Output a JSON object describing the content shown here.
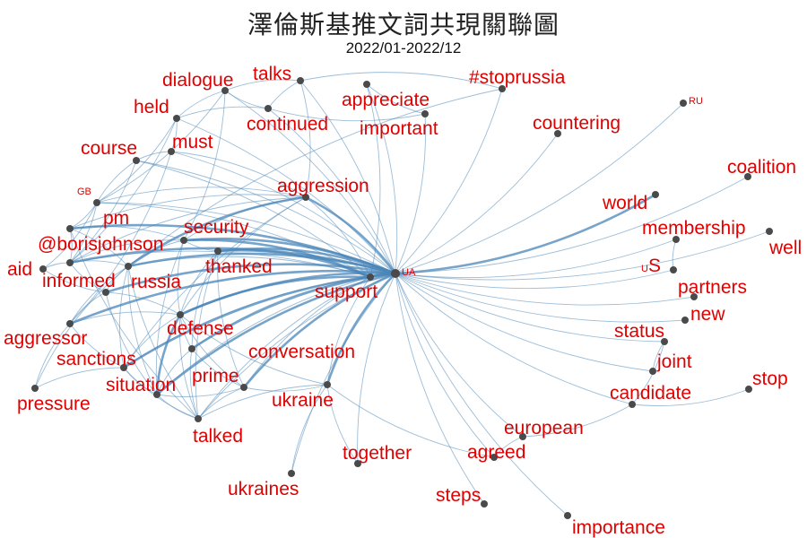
{
  "header": {
    "title": "澤倫斯基推文詞共現關聯圖",
    "subtitle": "2022/01-2022/12"
  },
  "graph": {
    "nodes": [
      {
        "id": "ua",
        "label": "UA",
        "small": true
      },
      {
        "id": "support",
        "label": "support"
      },
      {
        "id": "aggression",
        "label": "aggression"
      },
      {
        "id": "security",
        "label": "security"
      },
      {
        "id": "thanked",
        "label": "thanked"
      },
      {
        "id": "defense",
        "label": "defense"
      },
      {
        "id": "conversation",
        "label": "conversation"
      },
      {
        "id": "russia",
        "label": "russia"
      },
      {
        "id": "borisjohnson",
        "label": "@borisjohnson"
      },
      {
        "id": "pm",
        "label": "pm"
      },
      {
        "id": "gb",
        "label": "GB",
        "small": true
      },
      {
        "id": "aid",
        "label": "aid"
      },
      {
        "id": "informed",
        "label": "informed"
      },
      {
        "id": "aggressor",
        "label": "aggressor"
      },
      {
        "id": "sanctions",
        "label": "sanctions"
      },
      {
        "id": "situation",
        "label": "situation"
      },
      {
        "id": "prime",
        "label": "prime"
      },
      {
        "id": "pressure",
        "label": "pressure"
      },
      {
        "id": "talked",
        "label": "talked"
      },
      {
        "id": "ukraine",
        "label": "ukraine"
      },
      {
        "id": "ukraines",
        "label": "ukraines"
      },
      {
        "id": "together",
        "label": "together"
      },
      {
        "id": "agreed",
        "label": "agreed"
      },
      {
        "id": "steps",
        "label": "steps"
      },
      {
        "id": "importance",
        "label": "importance"
      },
      {
        "id": "european",
        "label": "european"
      },
      {
        "id": "candidate",
        "label": "candidate"
      },
      {
        "id": "stop",
        "label": "stop"
      },
      {
        "id": "joint",
        "label": "joint"
      },
      {
        "id": "status",
        "label": "status"
      },
      {
        "id": "new",
        "label": "new"
      },
      {
        "id": "partners",
        "label": "partners"
      },
      {
        "id": "us",
        "label": "US",
        "mixed": true
      },
      {
        "id": "well",
        "label": "well"
      },
      {
        "id": "membership",
        "label": "membership"
      },
      {
        "id": "world",
        "label": "world"
      },
      {
        "id": "coalition",
        "label": "coalition"
      },
      {
        "id": "ru",
        "label": "RU",
        "small": true
      },
      {
        "id": "countering",
        "label": "countering"
      },
      {
        "id": "stoprussia",
        "label": "#stoprussia"
      },
      {
        "id": "appreciate",
        "label": "appreciate"
      },
      {
        "id": "important",
        "label": "important"
      },
      {
        "id": "talks",
        "label": "talks"
      },
      {
        "id": "continued",
        "label": "continued"
      },
      {
        "id": "dialogue",
        "label": "dialogue"
      },
      {
        "id": "held",
        "label": "held"
      },
      {
        "id": "must",
        "label": "must"
      },
      {
        "id": "course",
        "label": "course"
      }
    ],
    "edges": [
      [
        "ua",
        "support"
      ],
      [
        "ua",
        "aggression"
      ],
      [
        "ua",
        "security"
      ],
      [
        "ua",
        "thanked"
      ],
      [
        "ua",
        "defense"
      ],
      [
        "ua",
        "conversation"
      ],
      [
        "ua",
        "russia"
      ],
      [
        "ua",
        "borisjohnson"
      ],
      [
        "ua",
        "pm"
      ],
      [
        "ua",
        "gb"
      ],
      [
        "ua",
        "informed"
      ],
      [
        "ua",
        "aggressor"
      ],
      [
        "ua",
        "sanctions"
      ],
      [
        "ua",
        "situation"
      ],
      [
        "ua",
        "prime"
      ],
      [
        "ua",
        "talked"
      ],
      [
        "ua",
        "ukraine"
      ],
      [
        "ua",
        "ukraines"
      ],
      [
        "ua",
        "together"
      ],
      [
        "ua",
        "agreed"
      ],
      [
        "ua",
        "steps"
      ],
      [
        "ua",
        "importance"
      ],
      [
        "ua",
        "european"
      ],
      [
        "ua",
        "candidate"
      ],
      [
        "ua",
        "joint"
      ],
      [
        "ua",
        "status"
      ],
      [
        "ua",
        "new"
      ],
      [
        "ua",
        "partners"
      ],
      [
        "ua",
        "us"
      ],
      [
        "ua",
        "well"
      ],
      [
        "ua",
        "membership"
      ],
      [
        "ua",
        "world"
      ],
      [
        "ua",
        "coalition"
      ],
      [
        "ua",
        "ru"
      ],
      [
        "ua",
        "countering"
      ],
      [
        "ua",
        "stoprussia"
      ],
      [
        "ua",
        "appreciate"
      ],
      [
        "ua",
        "important"
      ],
      [
        "ua",
        "talks"
      ],
      [
        "ua",
        "continued"
      ],
      [
        "ua",
        "dialogue"
      ],
      [
        "ua",
        "held"
      ],
      [
        "ua",
        "must"
      ],
      [
        "ua",
        "course"
      ],
      [
        "support",
        "defense"
      ],
      [
        "support",
        "security"
      ],
      [
        "support",
        "thanked"
      ],
      [
        "support",
        "aggression"
      ],
      [
        "support",
        "conversation"
      ],
      [
        "support",
        "russia"
      ],
      [
        "support",
        "prime"
      ],
      [
        "support",
        "talked"
      ],
      [
        "support",
        "borisjohnson"
      ],
      [
        "support",
        "situation"
      ],
      [
        "support",
        "sanctions"
      ],
      [
        "support",
        "ukraine"
      ],
      [
        "support",
        "appreciate"
      ],
      [
        "support",
        "course"
      ],
      [
        "support",
        "gb"
      ],
      [
        "aggression",
        "russia"
      ],
      [
        "aggression",
        "security"
      ],
      [
        "aggression",
        "defense"
      ],
      [
        "aggression",
        "gb"
      ],
      [
        "aggression",
        "must"
      ],
      [
        "aggression",
        "talks"
      ],
      [
        "aggression",
        "borisjohnson"
      ],
      [
        "aggression",
        "sanctions"
      ],
      [
        "aggression",
        "pm"
      ],
      [
        "security",
        "defense"
      ],
      [
        "security",
        "thanked"
      ],
      [
        "security",
        "russia"
      ],
      [
        "security",
        "borisjohnson"
      ],
      [
        "security",
        "pm"
      ],
      [
        "security",
        "dialogue"
      ],
      [
        "security",
        "situation"
      ],
      [
        "thanked",
        "defense"
      ],
      [
        "thanked",
        "prime"
      ],
      [
        "thanked",
        "conversation"
      ],
      [
        "thanked",
        "talked"
      ],
      [
        "defense",
        "situation"
      ],
      [
        "defense",
        "sanctions"
      ],
      [
        "defense",
        "prime"
      ],
      [
        "defense",
        "conversation"
      ],
      [
        "defense",
        "talked"
      ],
      [
        "defense",
        "aggressor"
      ],
      [
        "defense",
        "informed"
      ],
      [
        "defense",
        "ukraine"
      ],
      [
        "conversation",
        "talked"
      ],
      [
        "conversation",
        "prime"
      ],
      [
        "conversation",
        "situation"
      ],
      [
        "russia",
        "informed"
      ],
      [
        "russia",
        "sanctions"
      ],
      [
        "russia",
        "aggressor"
      ],
      [
        "russia",
        "borisjohnson"
      ],
      [
        "russia",
        "pm"
      ],
      [
        "russia",
        "situation"
      ],
      [
        "russia",
        "pressure"
      ],
      [
        "russia",
        "talked"
      ],
      [
        "borisjohnson",
        "pm"
      ],
      [
        "borisjohnson",
        "gb"
      ],
      [
        "borisjohnson",
        "aid"
      ],
      [
        "borisjohnson",
        "informed"
      ],
      [
        "borisjohnson",
        "course"
      ],
      [
        "borisjohnson",
        "held"
      ],
      [
        "pm",
        "gb"
      ],
      [
        "pm",
        "talked"
      ],
      [
        "informed",
        "situation"
      ],
      [
        "informed",
        "aggressor"
      ],
      [
        "aggressor",
        "sanctions"
      ],
      [
        "aggressor",
        "pressure"
      ],
      [
        "aggressor",
        "must"
      ],
      [
        "sanctions",
        "situation"
      ],
      [
        "sanctions",
        "pressure"
      ],
      [
        "sanctions",
        "talked"
      ],
      [
        "situation",
        "prime"
      ],
      [
        "situation",
        "talked"
      ],
      [
        "prime",
        "talked"
      ],
      [
        "prime",
        "ukraine"
      ],
      [
        "ukraine",
        "together"
      ],
      [
        "ukraine",
        "ukraines"
      ],
      [
        "ukraine",
        "agreed"
      ],
      [
        "ukraine",
        "talked"
      ],
      [
        "european",
        "candidate"
      ],
      [
        "european",
        "agreed"
      ],
      [
        "candidate",
        "status"
      ],
      [
        "candidate",
        "stop"
      ],
      [
        "status",
        "joint"
      ],
      [
        "membership",
        "us"
      ],
      [
        "talks",
        "continued"
      ],
      [
        "talks",
        "dialogue"
      ],
      [
        "dialogue",
        "continued"
      ],
      [
        "dialogue",
        "held"
      ],
      [
        "continued",
        "held"
      ],
      [
        "continued",
        "important"
      ],
      [
        "appreciate",
        "important"
      ],
      [
        "must",
        "course"
      ],
      [
        "must",
        "held"
      ],
      [
        "course",
        "gb"
      ],
      [
        "gb",
        "held"
      ],
      [
        "gb",
        "dialogue"
      ],
      [
        "aid",
        "gb"
      ],
      [
        "aid",
        "informed"
      ],
      [
        "stoprussia",
        "talks"
      ],
      [
        "stoprussia",
        "russia"
      ]
    ]
  }
}
